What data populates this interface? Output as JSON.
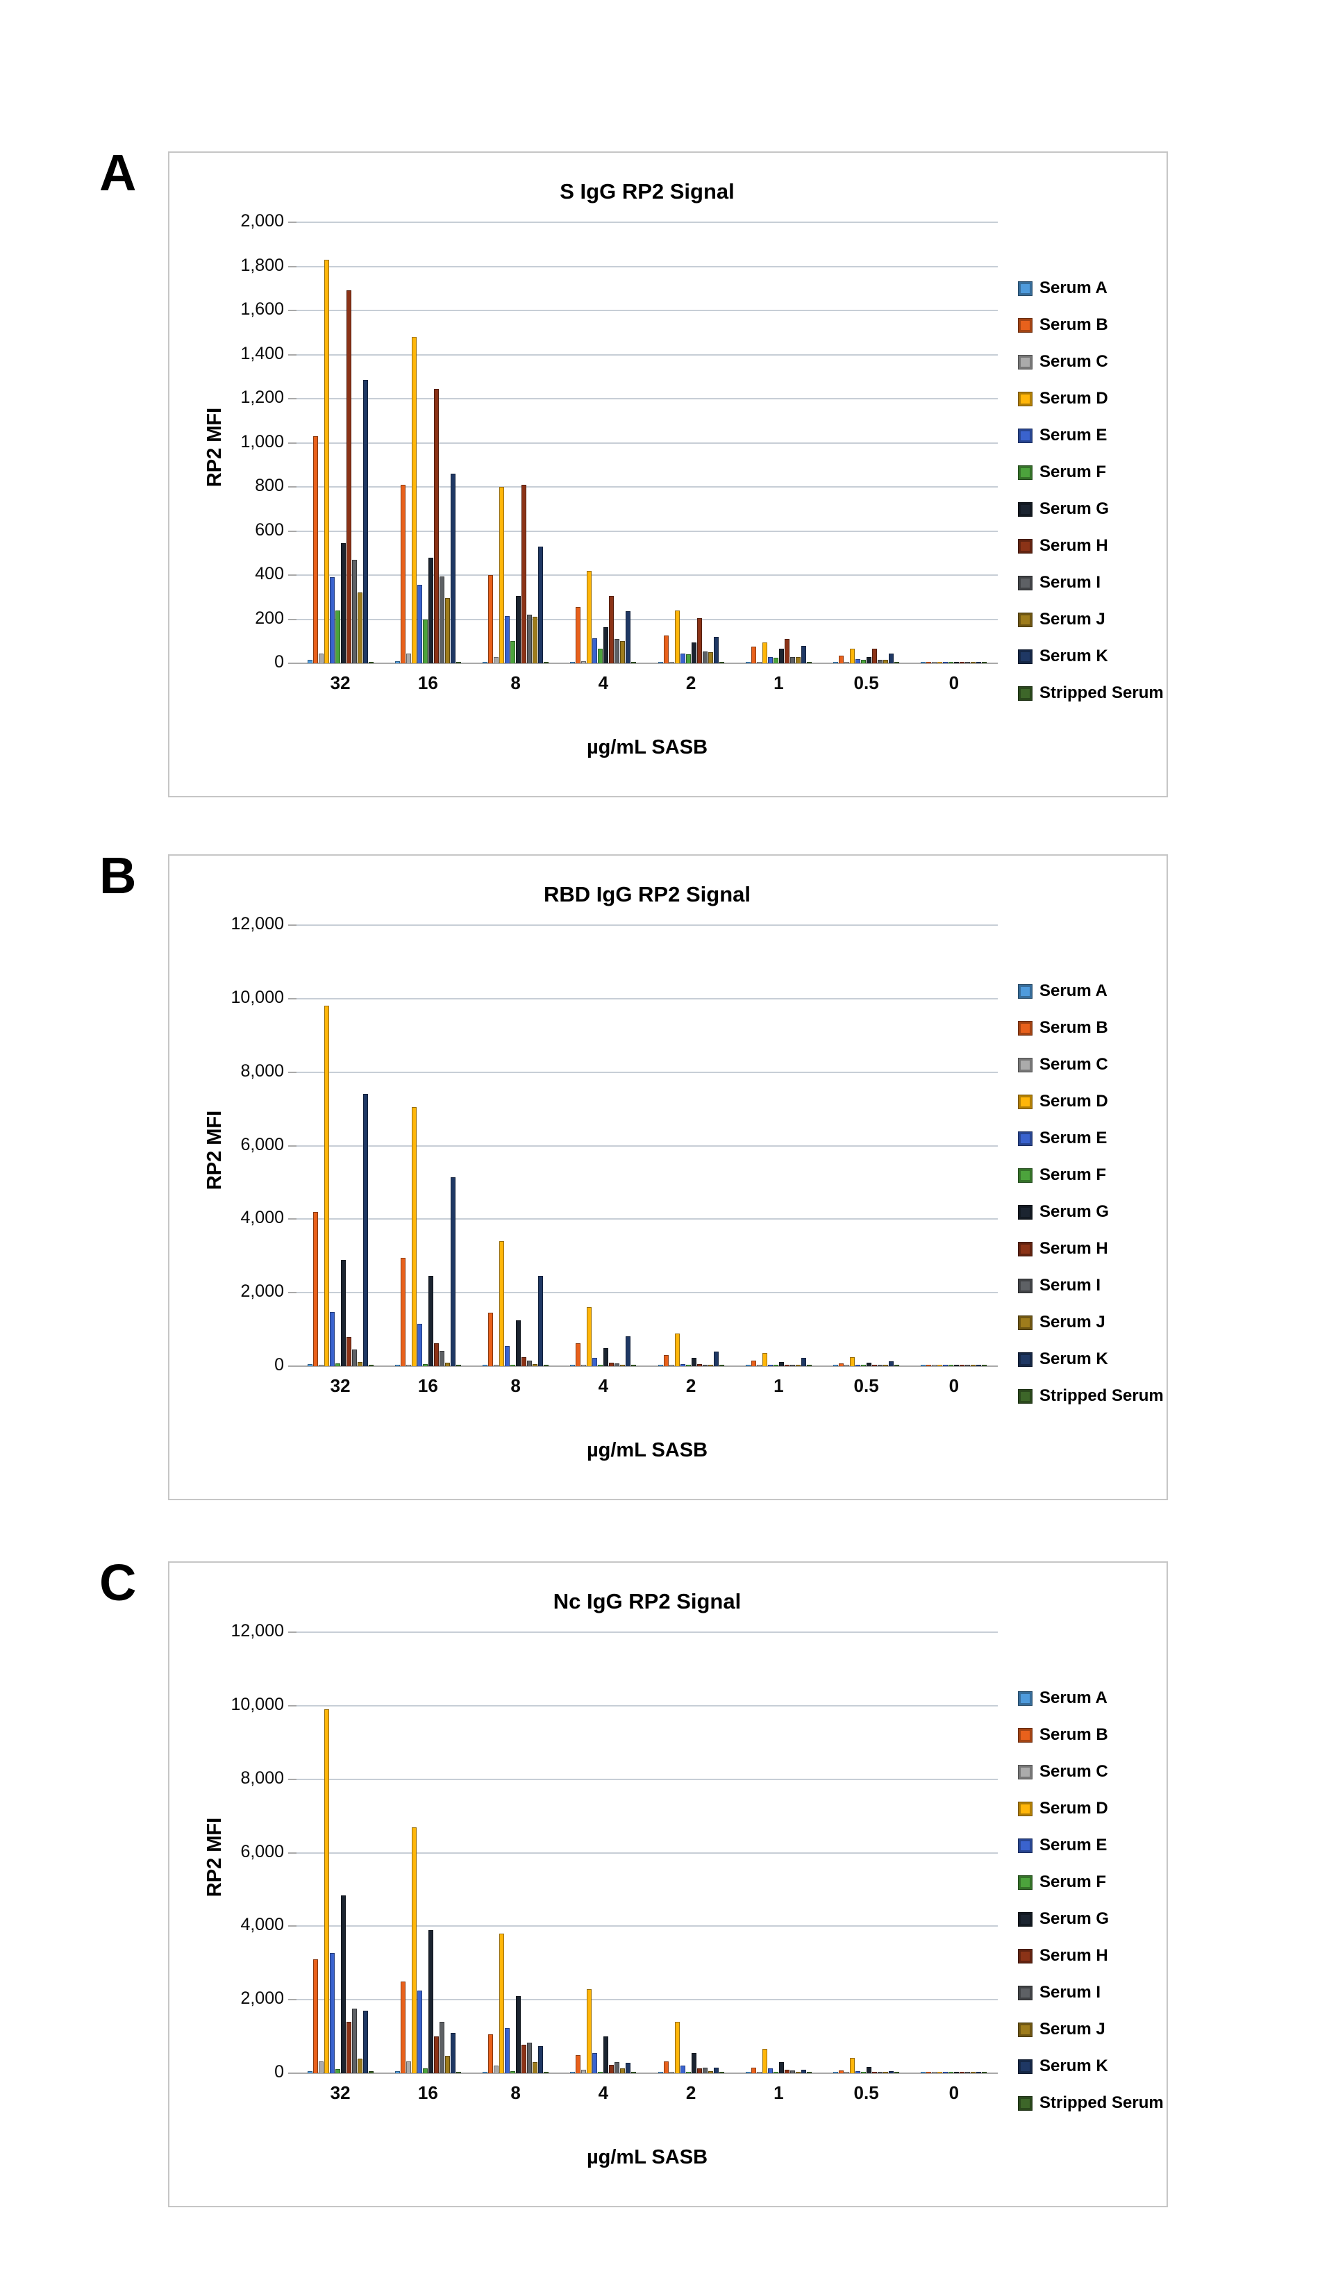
{
  "figure": {
    "panel_letters": [
      "A",
      "B",
      "C"
    ],
    "y_axis_title": "RP2 MFI",
    "x_axis_title": "µg/mL SASB"
  },
  "legend": {
    "position": "right",
    "items": [
      {
        "label": "Serum A",
        "color": "#4F9BDC"
      },
      {
        "label": "Serum B",
        "color": "#E8611C"
      },
      {
        "label": "Serum C",
        "color": "#ABABAB"
      },
      {
        "label": "Serum D",
        "color": "#FFB60A"
      },
      {
        "label": "Serum E",
        "color": "#3A63CE"
      },
      {
        "label": "Serum F",
        "color": "#4CA33C"
      },
      {
        "label": "Serum G",
        "color": "#1B2430"
      },
      {
        "label": "Serum H",
        "color": "#8B3317"
      },
      {
        "label": "Serum I",
        "color": "#5E6165"
      },
      {
        "label": "Serum J",
        "color": "#9E7C1C"
      },
      {
        "label": "Serum K",
        "color": "#1F3864"
      },
      {
        "label": "Stripped Serum",
        "color": "#3D6629"
      }
    ]
  },
  "chart_data": [
    {
      "type": "bar",
      "panel_label": "A",
      "title": "S IgG RP2 Signal",
      "xlabel": "µg/mL SASB",
      "ylabel": "RP2 MFI",
      "grid": true,
      "legend_position": "right",
      "ylim": [
        0,
        2000
      ],
      "ytick_step": 200,
      "y_ticks": [
        "2,000",
        "1,800",
        "1,600",
        "1,400",
        "1,200",
        "1,000",
        "800",
        "600",
        "400",
        "200",
        "0"
      ],
      "categories": [
        "32",
        "16",
        "8",
        "4",
        "2",
        "1",
        "0.5",
        "0"
      ],
      "series": [
        {
          "name": "Serum A",
          "color": "#4F9BDC",
          "values": [
            15,
            10,
            8,
            5,
            5,
            5,
            3,
            8
          ]
        },
        {
          "name": "Serum B",
          "color": "#E8611C",
          "values": [
            1030,
            810,
            400,
            255,
            125,
            75,
            35,
            3
          ]
        },
        {
          "name": "Serum C",
          "color": "#ABABAB",
          "values": [
            45,
            45,
            30,
            10,
            8,
            5,
            3,
            2
          ]
        },
        {
          "name": "Serum D",
          "color": "#FFB60A",
          "values": [
            1830,
            1480,
            800,
            420,
            240,
            95,
            65,
            4
          ]
        },
        {
          "name": "Serum E",
          "color": "#3A63CE",
          "values": [
            390,
            355,
            215,
            115,
            45,
            30,
            20,
            3
          ]
        },
        {
          "name": "Serum F",
          "color": "#4CA33C",
          "values": [
            240,
            200,
            100,
            65,
            40,
            25,
            15,
            2
          ]
        },
        {
          "name": "Serum G",
          "color": "#1B2430",
          "values": [
            545,
            480,
            305,
            165,
            95,
            65,
            30,
            6
          ]
        },
        {
          "name": "Serum H",
          "color": "#8B3317",
          "values": [
            1690,
            1245,
            810,
            305,
            205,
            110,
            65,
            8
          ]
        },
        {
          "name": "Serum I",
          "color": "#5E6165",
          "values": [
            470,
            395,
            220,
            110,
            55,
            30,
            15,
            3
          ]
        },
        {
          "name": "Serum J",
          "color": "#9E7C1C",
          "values": [
            320,
            295,
            210,
            100,
            50,
            30,
            15,
            3
          ]
        },
        {
          "name": "Serum K",
          "color": "#1F3864",
          "values": [
            1285,
            860,
            530,
            235,
            120,
            80,
            45,
            6
          ]
        },
        {
          "name": "Stripped Serum",
          "color": "#3D6629",
          "values": [
            8,
            8,
            8,
            5,
            5,
            3,
            3,
            2
          ]
        }
      ]
    },
    {
      "type": "bar",
      "panel_label": "B",
      "title": "RBD IgG RP2 Signal",
      "xlabel": "µg/mL SASB",
      "ylabel": "RP2 MFI",
      "grid": true,
      "legend_position": "right",
      "ylim": [
        0,
        12000
      ],
      "ytick_step": 2000,
      "y_ticks": [
        "12,000",
        "10,000",
        "8,000",
        "6,000",
        "4,000",
        "2,000",
        "0"
      ],
      "categories": [
        "32",
        "16",
        "8",
        "4",
        "2",
        "1",
        "0.5",
        "0"
      ],
      "series": [
        {
          "name": "Serum A",
          "color": "#4F9BDC",
          "values": [
            50,
            40,
            30,
            25,
            20,
            15,
            10,
            8
          ]
        },
        {
          "name": "Serum B",
          "color": "#E8611C",
          "values": [
            4200,
            2950,
            1450,
            630,
            300,
            150,
            80,
            10
          ]
        },
        {
          "name": "Serum C",
          "color": "#ABABAB",
          "values": [
            30,
            25,
            20,
            15,
            10,
            8,
            5,
            5
          ]
        },
        {
          "name": "Serum D",
          "color": "#FFB60A",
          "values": [
            9800,
            7050,
            3400,
            1600,
            880,
            360,
            250,
            15
          ]
        },
        {
          "name": "Serum E",
          "color": "#3A63CE",
          "values": [
            1470,
            1150,
            550,
            230,
            60,
            35,
            25,
            8
          ]
        },
        {
          "name": "Serum F",
          "color": "#4CA33C",
          "values": [
            80,
            60,
            40,
            30,
            20,
            15,
            10,
            5
          ]
        },
        {
          "name": "Serum G",
          "color": "#1B2430",
          "values": [
            2900,
            2450,
            1250,
            490,
            220,
            120,
            100,
            15
          ]
        },
        {
          "name": "Serum H",
          "color": "#8B3317",
          "values": [
            800,
            620,
            250,
            100,
            55,
            40,
            30,
            8
          ]
        },
        {
          "name": "Serum I",
          "color": "#5E6165",
          "values": [
            450,
            420,
            160,
            80,
            45,
            30,
            20,
            8
          ]
        },
        {
          "name": "Serum J",
          "color": "#9E7C1C",
          "values": [
            110,
            90,
            60,
            40,
            25,
            15,
            10,
            5
          ]
        },
        {
          "name": "Serum K",
          "color": "#1F3864",
          "values": [
            7400,
            5150,
            2450,
            820,
            400,
            230,
            130,
            15
          ]
        },
        {
          "name": "Stripped Serum",
          "color": "#3D6629",
          "values": [
            30,
            25,
            20,
            15,
            10,
            8,
            5,
            5
          ]
        }
      ]
    },
    {
      "type": "bar",
      "panel_label": "C",
      "title": "Nc IgG RP2 Signal",
      "xlabel": "µg/mL SASB",
      "ylabel": "RP2 MFI",
      "grid": true,
      "legend_position": "right",
      "ylim": [
        0,
        12000
      ],
      "ytick_step": 2000,
      "y_ticks": [
        "12,000",
        "10,000",
        "8,000",
        "6,000",
        "4,000",
        "2,000",
        "0"
      ],
      "categories": [
        "32",
        "16",
        "8",
        "4",
        "2",
        "1",
        "0.5",
        "0"
      ],
      "series": [
        {
          "name": "Serum A",
          "color": "#4F9BDC",
          "values": [
            60,
            50,
            40,
            30,
            25,
            20,
            15,
            10
          ]
        },
        {
          "name": "Serum B",
          "color": "#E8611C",
          "values": [
            3100,
            2500,
            1050,
            500,
            330,
            160,
            70,
            15
          ]
        },
        {
          "name": "Serum C",
          "color": "#ABABAB",
          "values": [
            330,
            320,
            200,
            90,
            40,
            25,
            15,
            8
          ]
        },
        {
          "name": "Serum D",
          "color": "#FFB60A",
          "values": [
            9900,
            6700,
            3800,
            2280,
            1400,
            670,
            420,
            20
          ]
        },
        {
          "name": "Serum E",
          "color": "#3A63CE",
          "values": [
            3270,
            2250,
            1220,
            550,
            210,
            140,
            60,
            10
          ]
        },
        {
          "name": "Serum F",
          "color": "#4CA33C",
          "values": [
            120,
            130,
            60,
            40,
            25,
            20,
            15,
            8
          ]
        },
        {
          "name": "Serum G",
          "color": "#1B2430",
          "values": [
            4830,
            3900,
            2100,
            1000,
            550,
            310,
            170,
            20
          ]
        },
        {
          "name": "Serum H",
          "color": "#8B3317",
          "values": [
            1390,
            1000,
            780,
            220,
            130,
            90,
            40,
            10
          ]
        },
        {
          "name": "Serum I",
          "color": "#5E6165",
          "values": [
            1750,
            1390,
            830,
            300,
            160,
            80,
            40,
            10
          ]
        },
        {
          "name": "Serum J",
          "color": "#9E7C1C",
          "values": [
            390,
            470,
            300,
            130,
            60,
            40,
            20,
            8
          ]
        },
        {
          "name": "Serum K",
          "color": "#1F3864",
          "values": [
            1700,
            1100,
            740,
            280,
            150,
            90,
            50,
            12
          ]
        },
        {
          "name": "Stripped Serum",
          "color": "#3D6629",
          "values": [
            50,
            40,
            30,
            20,
            15,
            10,
            8,
            5
          ]
        }
      ]
    }
  ]
}
